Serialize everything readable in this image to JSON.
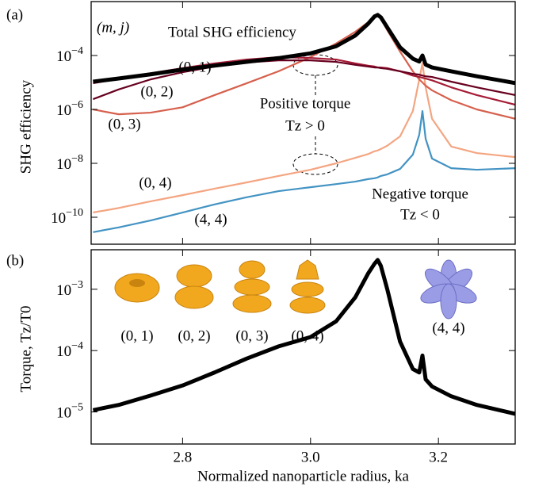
{
  "chart_data": [
    {
      "type": "line",
      "panel_label": "(a)",
      "ylabel": "SHG efficiency",
      "yscale": "log",
      "annotations": [
        "(m, j)",
        "Positive torque",
        "Tz > 0",
        "Negative torque",
        "Tz < 0"
      ],
      "x": [
        2.66,
        2.7,
        2.75,
        2.8,
        2.85,
        2.9,
        2.95,
        3.0,
        3.04,
        3.07,
        3.09,
        3.1,
        3.105,
        3.11,
        3.12,
        3.14,
        3.16,
        3.17,
        3.175,
        3.18,
        3.19,
        3.22,
        3.26,
        3.32
      ],
      "series": [
        {
          "name": "Total SHG efficiency",
          "color": "#000000",
          "values": [
            1.07e-05,
            1.4e-05,
            2e-05,
            3e-05,
            4.2e-05,
            5.8e-05,
            8e-05,
            0.00012,
            0.00022,
            0.00055,
            0.0015,
            0.0028,
            0.0032,
            0.0026,
            0.0011,
            0.0002,
            7.6e-05,
            6e-05,
            0.0001,
            4.6e-05,
            3.6e-05,
            2.6e-05,
            1.7e-05,
            9.5e-06
          ]
        },
        {
          "name": "(0, 1)",
          "color": "#67001f",
          "values": [
            2.4e-06,
            5.5e-06,
            1.3e-05,
            2.4e-05,
            3.9e-05,
            5.5e-05,
            6.6e-05,
            6.6e-05,
            5.8e-05,
            4.5e-05,
            3.9e-05,
            3.6e-05,
            3.6e-05,
            3.4e-05,
            3.2e-05,
            2.6e-05,
            2.1e-05,
            1.95e-05,
            1.8e-05,
            1.7e-05,
            1.6e-05,
            1.07e-05,
            6.6e-06,
            3.4e-06
          ]
        },
        {
          "name": "(0, 2)",
          "color": "#a51c36",
          "values": [
            9.3e-06,
            1.4e-05,
            2.2e-05,
            3.4e-05,
            5.1e-05,
            7.1e-05,
            8.7e-05,
            8.1e-05,
            7.1e-05,
            5.1e-05,
            4.2e-05,
            3.9e-05,
            3.6e-05,
            3.6e-05,
            3.4e-05,
            2.6e-05,
            1.8e-05,
            1.6e-05,
            1.5e-05,
            1.4e-05,
            1.2e-05,
            6.6e-06,
            3.4e-06,
            1.5e-06
          ]
        },
        {
          "name": "(0, 3)",
          "color": "#d6604d",
          "values": [
            1e-06,
            6.6e-07,
            7.6e-07,
            1.2e-06,
            3.4e-06,
            9.3e-06,
            2.6e-05,
            8.7e-05,
            0.00028,
            0.00076,
            0.0017,
            0.0026,
            0.003,
            0.0024,
            0.00087,
            0.00014,
            2.6e-05,
            1.3e-05,
            1e-05,
            7.6e-06,
            5.1e-06,
            2.2e-06,
            1e-06,
            4.5e-07
          ]
        },
        {
          "name": "(0, 4)",
          "color": "#f4a582",
          "values": [
            1.5e-10,
            2.2e-10,
            3.9e-10,
            6.6e-10,
            1.15e-09,
            1.95e-09,
            3.4e-09,
            5.8e-09,
            1e-08,
            1.6e-08,
            2.2e-08,
            2.8e-08,
            3e-08,
            3.4e-08,
            4.5e-08,
            1e-07,
            8.7e-07,
            1.3e-05,
            5.1e-05,
            6.6e-06,
            4.5e-07,
            4.2e-08,
            2.4e-08,
            1.7e-08
          ]
        },
        {
          "name": "(4, 4)",
          "color": "#4393c3",
          "values": [
            2.8e-11,
            4.2e-11,
            7.6e-11,
            1.5e-10,
            3e-10,
            5.5e-10,
            9.3e-10,
            1.3e-09,
            1.7e-09,
            2.1e-09,
            2.6e-09,
            2.8e-09,
            3e-09,
            3.4e-09,
            3.9e-09,
            6.2e-09,
            2.1e-08,
            1.15e-07,
            8.7e-07,
            8.1e-08,
            1.5e-08,
            6.6e-09,
            5.8e-09,
            6.6e-09
          ]
        }
      ],
      "xlim": [
        2.657,
        3.32
      ],
      "ylim": [
        1e-11,
        0.01
      ],
      "xticks": [
        2.8,
        3,
        3.2
      ],
      "yticks": [
        {
          "value": 0.0001,
          "label": "10−4"
        },
        {
          "value": 1e-06,
          "label": "10−6"
        },
        {
          "value": 1e-08,
          "label": "10−8"
        },
        {
          "value": 1e-10,
          "label": "10−10"
        }
      ]
    },
    {
      "type": "line",
      "panel_label": "(b)",
      "ylabel": "Torque, Tz/T0",
      "xlabel": "Normalized nanoparticle radius, ka",
      "yscale": "log",
      "annotations": [
        "(0, 1)",
        "(0, 2)",
        "(0, 3)",
        "(0, 4)",
        "(4, 4)"
      ],
      "x": [
        2.66,
        2.7,
        2.75,
        2.8,
        2.85,
        2.9,
        2.95,
        3.0,
        3.04,
        3.07,
        3.09,
        3.1,
        3.105,
        3.11,
        3.12,
        3.14,
        3.16,
        3.17,
        3.175,
        3.18,
        3.19,
        3.22,
        3.26,
        3.32
      ],
      "series": [
        {
          "color": "#000000",
          "values": [
            1.07e-05,
            1.3e-05,
            1.85e-05,
            2.7e-05,
            4.4e-05,
            7.4e-05,
            0.000117,
            0.000166,
            0.0003,
            0.00074,
            0.0018,
            0.0026,
            0.003,
            0.0024,
            0.001,
            0.00014,
            5e-05,
            4.4e-05,
            8.3e-05,
            3.4e-05,
            2.6e-05,
            1.8e-05,
            1.3e-05,
            9.3e-06
          ]
        }
      ],
      "xlim": [
        2.657,
        3.32
      ],
      "ylim": [
        3e-06,
        0.0044
      ],
      "xticks": [
        2.8,
        {
          "value": 3,
          "label": "3.0"
        },
        3.2
      ],
      "yticks": [
        {
          "value": 0.001,
          "label": "10−3"
        },
        {
          "value": 0.0001,
          "label": "10−4"
        },
        {
          "value": 1e-05,
          "label": "10−5"
        }
      ]
    }
  ]
}
